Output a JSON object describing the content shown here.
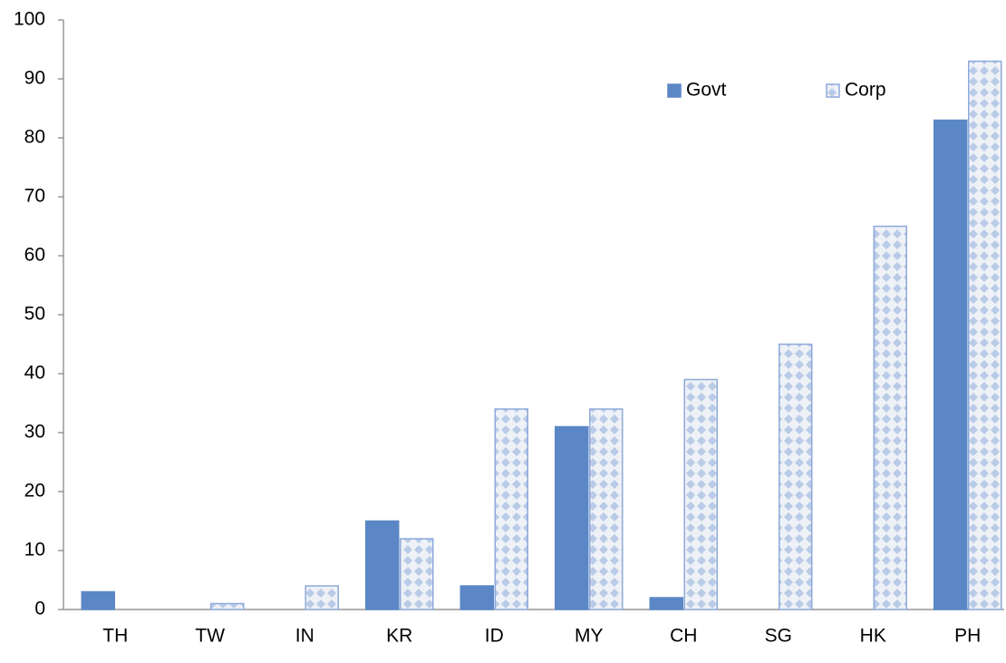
{
  "chart_data": {
    "type": "bar",
    "categories": [
      "TH",
      "TW",
      "IN",
      "KR",
      "ID",
      "MY",
      "CH",
      "SG",
      "HK",
      "PH"
    ],
    "series": [
      {
        "name": "Govt",
        "color": "#5b87c6",
        "values": [
          3,
          0,
          0,
          15,
          4,
          31,
          2,
          0,
          0,
          83
        ]
      },
      {
        "name": "Corp",
        "color": "#8eaadb",
        "values": [
          0,
          1,
          4,
          12,
          34,
          34,
          39,
          45,
          65,
          93
        ]
      }
    ],
    "ylim": [
      0,
      100
    ],
    "yticks": [
      0,
      10,
      20,
      30,
      40,
      50,
      60,
      70,
      80,
      90,
      100
    ],
    "grid": false,
    "legend": "upper right"
  }
}
